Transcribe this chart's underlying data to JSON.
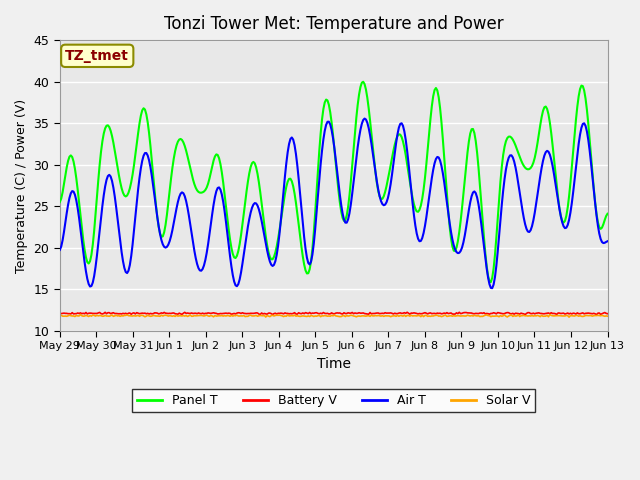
{
  "title": "Tonzi Tower Met: Temperature and Power",
  "xlabel": "Time",
  "ylabel": "Temperature (C) / Power (V)",
  "ylim": [
    10,
    45
  ],
  "yticks": [
    10,
    15,
    20,
    25,
    30,
    35,
    40,
    45
  ],
  "xtick_labels": [
    "May 29",
    "May 30",
    "May 31",
    "Jun 1",
    "Jun 2",
    "Jun 3",
    "Jun 4",
    "Jun 5",
    "Jun 6",
    "Jun 7",
    "Jun 8",
    "Jun 9",
    "Jun 10",
    "Jun 11",
    "Jun 12",
    "Jun 13"
  ],
  "annotation_text": "TZ_tmet",
  "annotation_text_color": "#8B0000",
  "annotation_bg_color": "#FFFFCC",
  "annotation_border_color": "#8B8B00",
  "legend_entries": [
    "Panel T",
    "Battery V",
    "Air T",
    "Solar V"
  ],
  "legend_colors": [
    "#00FF00",
    "#FF0000",
    "#0000FF",
    "#FFA500"
  ],
  "panel_t_color": "#00FF00",
  "battery_v_color": "#FF0000",
  "air_t_color": "#0000FF",
  "solar_v_color": "#FFA500",
  "bg_color": "#E8E8E8",
  "plot_bg_color": "#E8E8E8",
  "grid_color": "#FFFFFF",
  "num_points": 400
}
